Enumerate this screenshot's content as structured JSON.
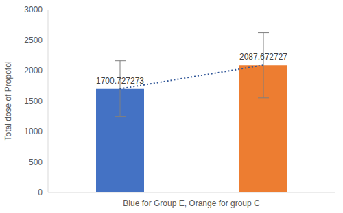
{
  "chart_data": {
    "type": "bar",
    "x_label": "Blue for Group E, Orange for group C",
    "y_label": "Total dose of Propofol",
    "categories": [
      null,
      null
    ],
    "series": [
      {
        "type": "bar",
        "values": [
          1700.727273,
          2087.672727
        ],
        "colors": [
          "#4472c4",
          "#ed7d31"
        ],
        "error": [
          460,
          535
        ],
        "data_labels": true
      },
      {
        "type": "line",
        "values": [
          1700.727273,
          2087.672727
        ],
        "color": "#2f5597",
        "line_style": "dotted"
      }
    ],
    "ylim": [
      0,
      3000
    ],
    "yticks": [
      0,
      500,
      1000,
      1500,
      2000,
      2500,
      3000
    ],
    "grid": false
  }
}
